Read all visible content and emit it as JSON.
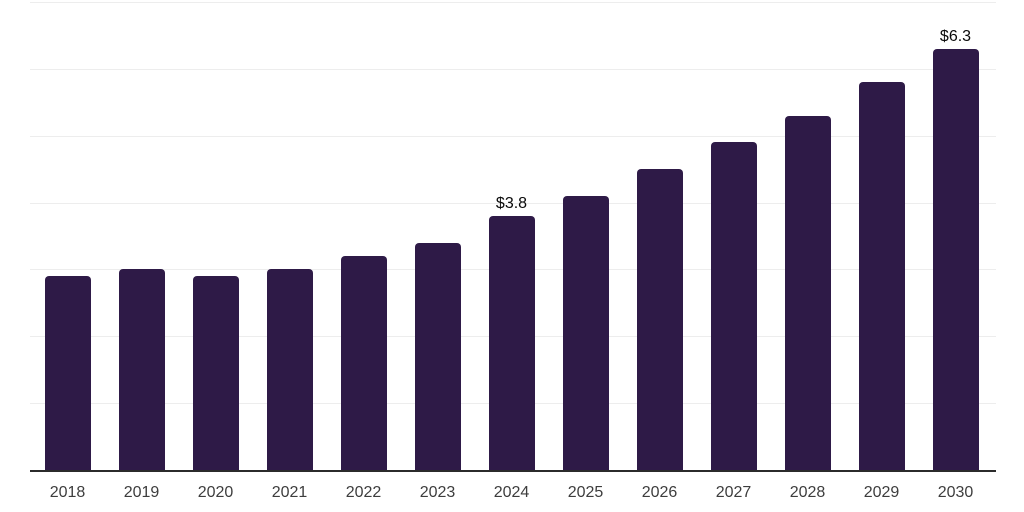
{
  "chart_data": {
    "type": "bar",
    "title": "",
    "xlabel": "",
    "ylabel": "",
    "categories": [
      "2018",
      "2019",
      "2020",
      "2021",
      "2022",
      "2023",
      "2024",
      "2025",
      "2026",
      "2027",
      "2028",
      "2029",
      "2030"
    ],
    "values": [
      2.9,
      3.0,
      2.9,
      3.0,
      3.2,
      3.4,
      3.8,
      4.1,
      4.5,
      4.9,
      5.3,
      5.8,
      6.3
    ],
    "data_labels": {
      "2024": "$3.8",
      "2030": "$6.3"
    },
    "ylim": [
      0,
      7
    ],
    "y_gridlines": [
      1,
      2,
      3,
      4,
      5,
      6,
      7
    ],
    "grid": "horizontal",
    "legend": "none",
    "colors": {
      "bar": "#2e1a47",
      "gridline": "#ededed",
      "axis_line": "#2b2b2b",
      "tick_label": "#3d3d3d",
      "data_label": "#0a0a0a",
      "background": "#ffffff"
    }
  }
}
